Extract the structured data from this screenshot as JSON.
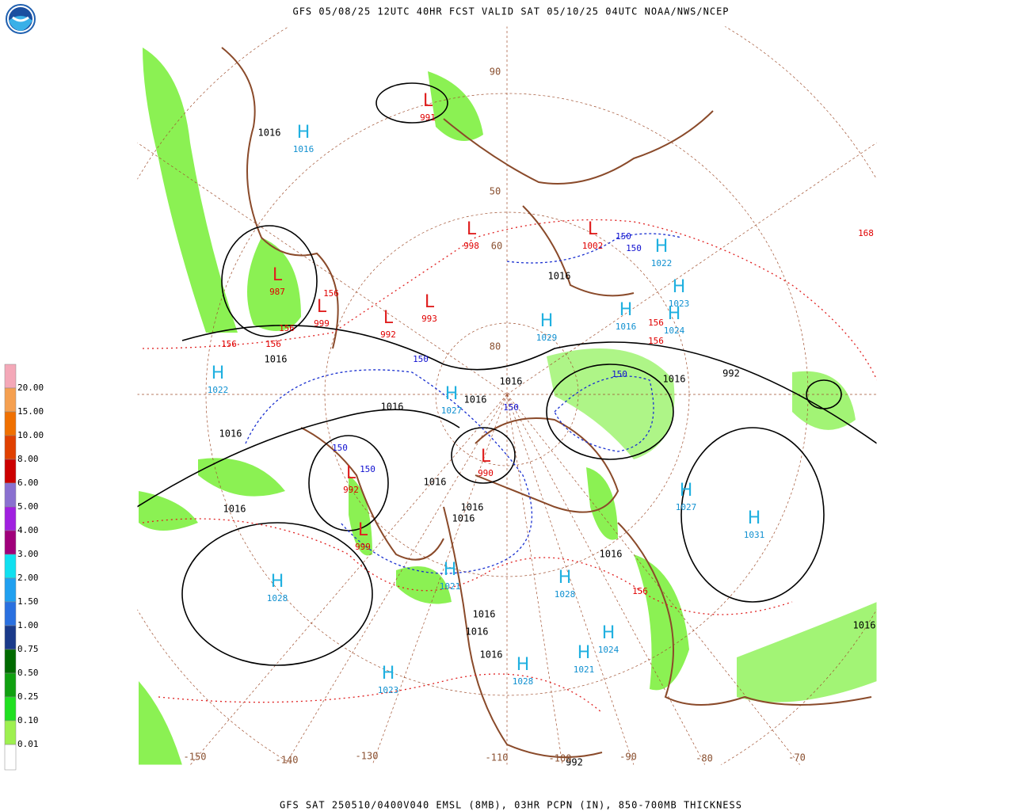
{
  "header": {
    "title": "GFS 05/08/25 12UTC 40HR FCST VALID SAT 05/10/25 04UTC NOAA/NWS/NCEP"
  },
  "footer": {
    "caption": "GFS SAT 250510/0400V040 EMSL (8MB), 03HR PCPN (IN), 850-700MB THICKNESS"
  },
  "legend": {
    "items": [
      {
        "label": "20.00",
        "color": "#f4a8b8"
      },
      {
        "label": "15.00",
        "color": "#f5a050"
      },
      {
        "label": "10.00",
        "color": "#f07000"
      },
      {
        "label": "8.00",
        "color": "#e04000"
      },
      {
        "label": "6.00",
        "color": "#cc0000"
      },
      {
        "label": "5.00",
        "color": "#8a70d0"
      },
      {
        "label": "4.00",
        "color": "#a020e0"
      },
      {
        "label": "3.00",
        "color": "#a0007a"
      },
      {
        "label": "2.00",
        "color": "#10e0f0"
      },
      {
        "label": "1.50",
        "color": "#20a0f0"
      },
      {
        "label": "1.00",
        "color": "#2a70e0"
      },
      {
        "label": "0.75",
        "color": "#1a3a8a"
      },
      {
        "label": "0.50",
        "color": "#006a00"
      },
      {
        "label": "0.25",
        "color": "#10a010"
      },
      {
        "label": "0.10",
        "color": "#20e020"
      },
      {
        "label": "0.01",
        "color": "#9ef050"
      }
    ]
  },
  "map": {
    "highs": [
      {
        "symbol": "H",
        "value": "1022"
      },
      {
        "symbol": "H",
        "value": "1027"
      },
      {
        "symbol": "H",
        "value": "1029"
      },
      {
        "symbol": "H",
        "value": "1028"
      },
      {
        "symbol": "H",
        "value": "1023"
      },
      {
        "symbol": "H",
        "value": "1028"
      },
      {
        "symbol": "H",
        "value": "1027"
      },
      {
        "symbol": "H",
        "value": "1031"
      },
      {
        "symbol": "H",
        "value": "1024"
      },
      {
        "symbol": "H",
        "value": "1021"
      },
      {
        "symbol": "H",
        "value": "1028"
      },
      {
        "symbol": "H",
        "value": "1022"
      },
      {
        "symbol": "H",
        "value": "1023"
      },
      {
        "symbol": "H",
        "value": "1024"
      },
      {
        "symbol": "H",
        "value": "1016"
      },
      {
        "symbol": "H",
        "value": "1021"
      },
      {
        "symbol": "H",
        "value": "1016"
      }
    ],
    "lows": [
      {
        "symbol": "L",
        "value": "991"
      },
      {
        "symbol": "L",
        "value": "998"
      },
      {
        "symbol": "L",
        "value": "1002"
      },
      {
        "symbol": "L",
        "value": "993"
      },
      {
        "symbol": "L",
        "value": "992"
      },
      {
        "symbol": "L",
        "value": "999"
      },
      {
        "symbol": "L",
        "value": "990"
      },
      {
        "symbol": "L",
        "value": "992"
      },
      {
        "symbol": "L",
        "value": "999"
      },
      {
        "symbol": "L",
        "value": "987"
      }
    ],
    "isobar_labels": [
      "1016",
      "1016",
      "1016",
      "1016",
      "1016",
      "1016",
      "1016",
      "1016",
      "1016",
      "1016",
      "1016",
      "1016",
      "1016",
      "1016",
      "1016",
      "992",
      "992",
      "1016",
      "1016"
    ],
    "thickness_labels_blue": [
      "150",
      "150",
      "150",
      "150",
      "150",
      "150",
      "150"
    ],
    "thickness_labels_red": [
      "156",
      "156",
      "156",
      "156",
      "156",
      "156",
      "156",
      "168"
    ],
    "longitude_labels": [
      "-150",
      "-140",
      "-130",
      "-110",
      "-100",
      "-90",
      "-80",
      "-70"
    ],
    "latitude_labels": [
      "90",
      "60",
      "50",
      "80"
    ]
  }
}
